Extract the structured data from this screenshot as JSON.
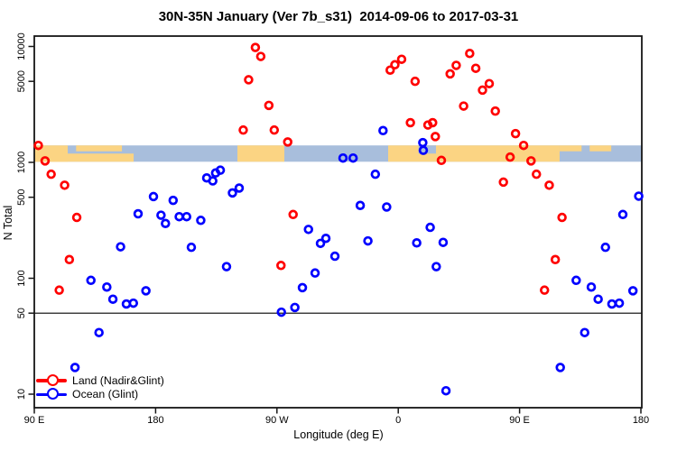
{
  "title": "30N-35N January (Ver 7b_s31)  2014-09-06 to 2017-03-31",
  "chart_data": {
    "type": "scatter",
    "title": "30N-35N January (Ver 7b_s31)  2014-09-06 to 2017-03-31",
    "xlabel": "Longitude (deg E)",
    "ylabel": "N Total",
    "x_axis": {
      "range": [
        90,
        540
      ],
      "ticks": [
        90,
        180,
        270,
        360,
        450,
        540
      ],
      "tick_labels": [
        "90 E",
        "180",
        "90 W",
        "0",
        "90 E",
        "180"
      ]
    },
    "y_axis": {
      "scale": "log",
      "range": [
        10,
        10000
      ],
      "ticks": [
        10,
        50,
        100,
        500,
        1000,
        5000,
        10000
      ],
      "tick_labels": [
        "10",
        "50",
        "100",
        "500",
        "1000",
        "5000",
        "10000"
      ]
    },
    "grid": false,
    "reference_line_y": 50,
    "legend_position": "bottom-left-inside",
    "series": [
      {
        "name": "Land (Nadir&Glint)",
        "color": "#ff0000",
        "points": [
          [
            93.0,
            1400
          ],
          [
            98.0,
            1030
          ],
          [
            102.5,
            790
          ],
          [
            112.5,
            635
          ],
          [
            121.5,
            335
          ],
          [
            116.0,
            145
          ],
          [
            108.5,
            79
          ],
          [
            254.0,
            9800
          ],
          [
            258.0,
            8200
          ],
          [
            249.0,
            5160
          ],
          [
            264.0,
            3100
          ],
          [
            245.0,
            1900
          ],
          [
            268.0,
            1900
          ],
          [
            278.0,
            1500
          ],
          [
            282.0,
            355
          ],
          [
            273.0,
            129
          ],
          [
            354.0,
            6250
          ],
          [
            357.5,
            6950
          ],
          [
            362.5,
            7750
          ],
          [
            372.5,
            5000
          ],
          [
            369.0,
            2200
          ],
          [
            382.0,
            2100
          ],
          [
            385.5,
            2200
          ],
          [
            387.5,
            1670
          ],
          [
            392.0,
            1040
          ],
          [
            398.5,
            5800
          ],
          [
            403.0,
            6870
          ],
          [
            413.0,
            8700
          ],
          [
            417.5,
            6480
          ],
          [
            422.5,
            4200
          ],
          [
            427.5,
            4780
          ],
          [
            408.5,
            3060
          ],
          [
            432.0,
            2770
          ],
          [
            438.0,
            675
          ],
          [
            443.0,
            1110
          ],
          [
            447.0,
            1770
          ],
          [
            453.0,
            1400
          ],
          [
            458.5,
            1030
          ],
          [
            462.5,
            790
          ],
          [
            472.0,
            635
          ],
          [
            481.5,
            335
          ],
          [
            476.5,
            145
          ],
          [
            468.5,
            79
          ]
        ]
      },
      {
        "name": "Ocean (Glint)",
        "color": "#0000ff",
        "points": [
          [
            132.0,
            96
          ],
          [
            143.8,
            84
          ],
          [
            148.3,
            66
          ],
          [
            158.3,
            60
          ],
          [
            163.5,
            61
          ],
          [
            172.8,
            78
          ],
          [
            138.0,
            34
          ],
          [
            120.2,
            17
          ],
          [
            154.0,
            187
          ],
          [
            167.0,
            360
          ],
          [
            178.4,
            507
          ],
          [
            184.0,
            350
          ],
          [
            187.3,
            297
          ],
          [
            193.0,
            470
          ],
          [
            197.5,
            340
          ],
          [
            203.0,
            340
          ],
          [
            206.5,
            185
          ],
          [
            213.5,
            316
          ],
          [
            232.6,
            126
          ],
          [
            217.9,
            734
          ],
          [
            222.4,
            692
          ],
          [
            224.5,
            810
          ],
          [
            228.0,
            856
          ],
          [
            237.0,
            545
          ],
          [
            242.0,
            600
          ],
          [
            293.4,
            264
          ],
          [
            302.3,
            200
          ],
          [
            306.3,
            221
          ],
          [
            313.0,
            155
          ],
          [
            298.3,
            111
          ],
          [
            288.9,
            83
          ],
          [
            283.3,
            56
          ],
          [
            273.3,
            51
          ],
          [
            319.0,
            1090
          ],
          [
            326.5,
            1090
          ],
          [
            348.7,
            1880
          ],
          [
            343.0,
            790
          ],
          [
            331.8,
            425
          ],
          [
            351.4,
            412
          ],
          [
            378.2,
            1480
          ],
          [
            378.6,
            1270
          ],
          [
            383.7,
            275
          ],
          [
            337.5,
            210
          ],
          [
            373.7,
            202
          ],
          [
            393.3,
            204
          ],
          [
            388.2,
            126
          ],
          [
            395.4,
            10.7
          ],
          [
            513.7,
            185
          ],
          [
            492.0,
            96
          ],
          [
            503.2,
            84
          ],
          [
            508.3,
            66
          ],
          [
            518.5,
            60
          ],
          [
            524.0,
            61
          ],
          [
            534.1,
            78
          ],
          [
            498.3,
            34
          ],
          [
            480.2,
            17
          ],
          [
            526.6,
            355
          ],
          [
            538.4,
            511
          ]
        ]
      }
    ],
    "map_band": {
      "description": "coastline strip for 30N-35N drawn across values ~1040-1400",
      "value_top": 1400,
      "value_bottom": 1040,
      "ocean_color": "#a8bedc",
      "land_color": "#fbd483",
      "land_segments_lon": [
        {
          "from": 90,
          "to": 114.8,
          "part": "full"
        },
        {
          "from": 90,
          "to": 163.7,
          "part": "lower"
        },
        {
          "from": 121,
          "to": 155,
          "part": "top"
        },
        {
          "from": 240.7,
          "to": 275.5,
          "part": "full"
        },
        {
          "from": 352.5,
          "to": 479.7,
          "part": "full"
        },
        {
          "from": 479.7,
          "to": 496.0,
          "part": "top"
        },
        {
          "from": 502.0,
          "to": 518.0,
          "part": "top"
        }
      ],
      "ocean_notches_lon": [
        {
          "from": 375.0,
          "to": 388.0,
          "part": "upper"
        }
      ]
    }
  },
  "legend": {
    "items": [
      {
        "label": "Land (Nadir&Glint)",
        "color": "#ff0000"
      },
      {
        "label": "Ocean (Glint)",
        "color": "#0000ff"
      }
    ]
  }
}
